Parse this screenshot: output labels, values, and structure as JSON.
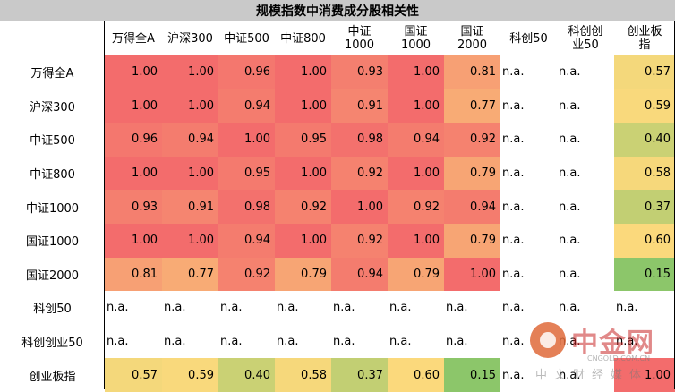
{
  "chart_data": {
    "type": "heatmap",
    "title": "规模指数中消费成分股相关性",
    "columns": [
      "万得全A",
      "沪深300",
      "中证500",
      "中证800",
      "中证\n1000",
      "国证\n1000",
      "国证\n2000",
      "科创50",
      "科创创\n业50",
      "创业板\n指"
    ],
    "rows": [
      "万得全A",
      "沪深300",
      "中证500",
      "中证800",
      "中证1000",
      "国证1000",
      "国证2000",
      "科创50",
      "科创创业50",
      "创业板指"
    ],
    "values": [
      [
        1.0,
        1.0,
        0.96,
        1.0,
        0.93,
        1.0,
        0.81,
        null,
        null,
        0.57
      ],
      [
        1.0,
        1.0,
        0.94,
        1.0,
        0.91,
        1.0,
        0.77,
        null,
        null,
        0.59
      ],
      [
        0.96,
        0.94,
        1.0,
        0.95,
        0.98,
        0.94,
        0.92,
        null,
        null,
        0.4
      ],
      [
        1.0,
        1.0,
        0.95,
        1.0,
        0.92,
        1.0,
        0.79,
        null,
        null,
        0.58
      ],
      [
        0.93,
        0.91,
        0.98,
        0.92,
        1.0,
        0.92,
        0.94,
        null,
        null,
        0.37
      ],
      [
        1.0,
        1.0,
        0.94,
        1.0,
        0.92,
        1.0,
        0.79,
        null,
        null,
        0.6
      ],
      [
        0.81,
        0.77,
        0.92,
        0.79,
        0.94,
        0.79,
        1.0,
        null,
        null,
        0.15
      ],
      [
        null,
        null,
        null,
        null,
        null,
        null,
        null,
        null,
        null,
        null
      ],
      [
        null,
        null,
        null,
        null,
        null,
        null,
        null,
        null,
        null,
        null
      ],
      [
        0.57,
        0.59,
        0.4,
        0.58,
        0.37,
        0.6,
        0.15,
        null,
        null,
        1.0
      ]
    ],
    "na_label": "n.a.",
    "color_scale": {
      "low": "#8cc66a",
      "mid": "#fbd97c",
      "high": "#f36c6c"
    }
  },
  "watermark": {
    "brand": "中金网",
    "url": "CNGOLD.COM.CN",
    "subtitle": "中文财经媒体"
  }
}
